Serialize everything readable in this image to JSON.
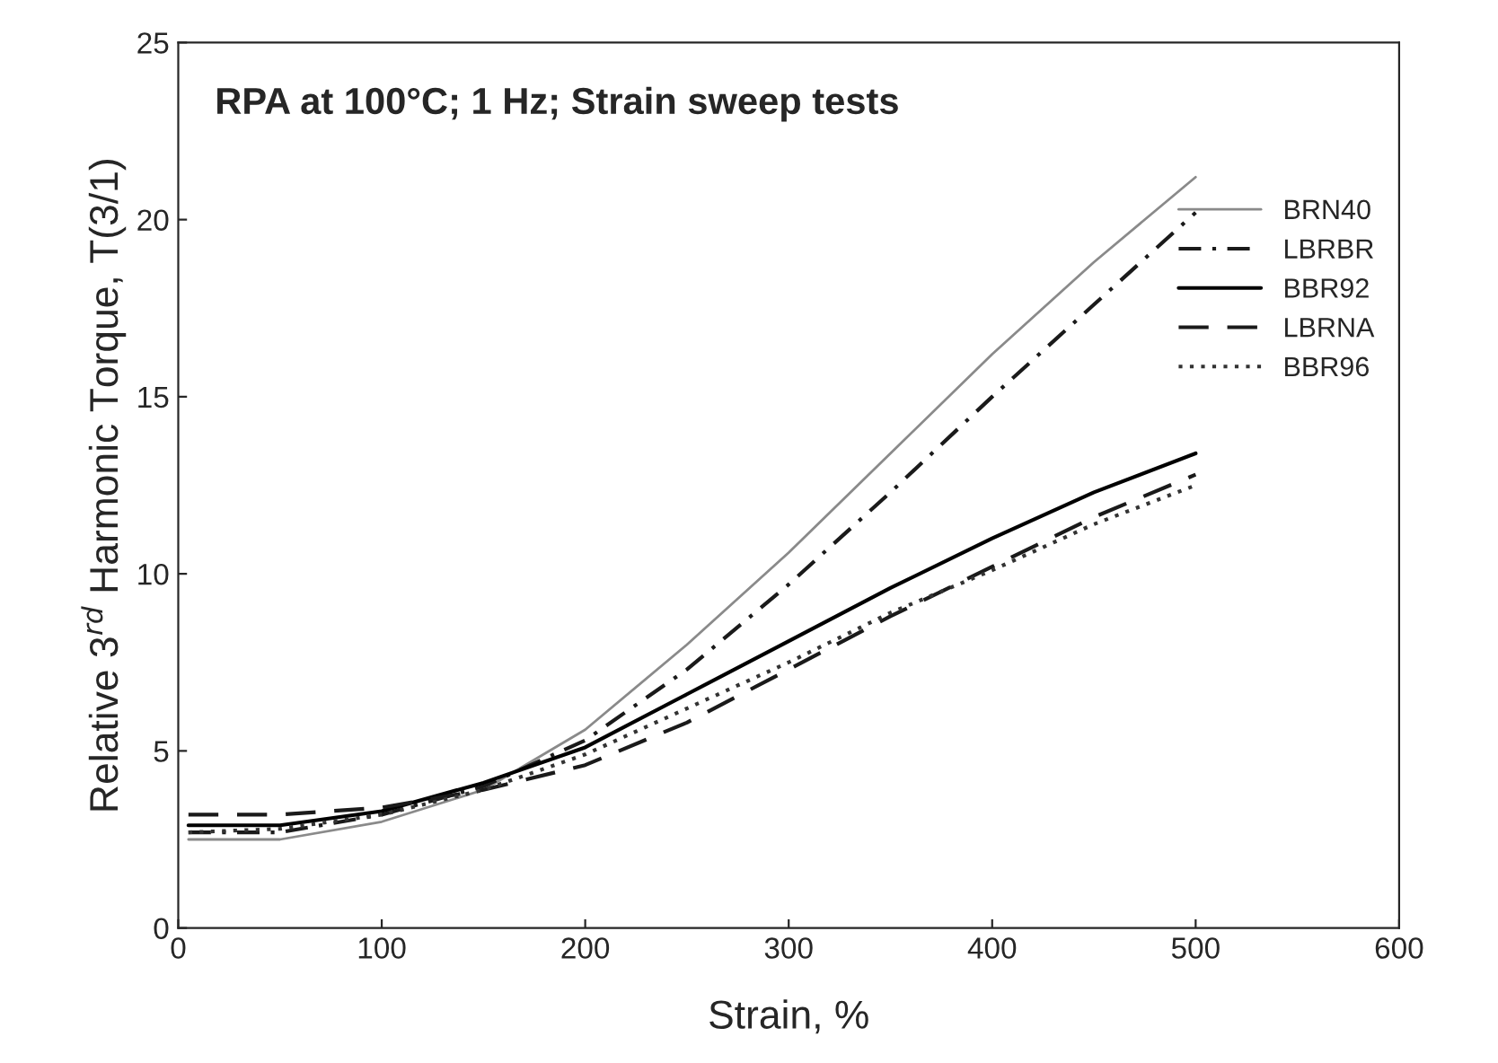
{
  "chart_data": {
    "type": "line",
    "title": "RPA at 100°C; 1 Hz; Strain sweep tests",
    "xlabel": "Strain, %",
    "ylabel": "Relative 3$^{rd}$ Harmonic Torque, T(3/1)",
    "x": [
      5,
      50,
      100,
      150,
      200,
      250,
      300,
      350,
      400,
      450,
      500
    ],
    "series": [
      {
        "name": "BRN40",
        "color": "#8a8a8a",
        "line_style": "solid",
        "values": [
          2.5,
          2.5,
          3.0,
          3.9,
          5.6,
          8.0,
          10.6,
          13.4,
          16.2,
          18.8,
          21.2
        ]
      },
      {
        "name": "LBRBR",
        "color": "#1a1a1a",
        "line_style": "dashdot",
        "values": [
          2.7,
          2.7,
          3.2,
          4.0,
          5.3,
          7.3,
          9.7,
          12.3,
          15.0,
          17.6,
          20.2
        ]
      },
      {
        "name": "BBR92",
        "color": "#000000",
        "line_style": "solid",
        "values": [
          2.9,
          2.9,
          3.3,
          4.1,
          5.1,
          6.6,
          8.1,
          9.6,
          11.0,
          12.3,
          13.4
        ]
      },
      {
        "name": "LBRNA",
        "color": "#1a1a1a",
        "line_style": "dashed",
        "values": [
          3.2,
          3.2,
          3.4,
          3.9,
          4.6,
          5.8,
          7.3,
          8.8,
          10.2,
          11.6,
          12.8
        ]
      },
      {
        "name": "BBR96",
        "color": "#333333",
        "line_style": "dotted",
        "values": [
          2.7,
          2.8,
          3.2,
          3.9,
          4.9,
          6.2,
          7.5,
          8.9,
          10.1,
          11.4,
          12.5
        ]
      }
    ],
    "xlim": [
      0,
      600
    ],
    "xticks": [
      0,
      100,
      200,
      300,
      400,
      500,
      600
    ],
    "ylim": [
      0,
      25
    ],
    "yticks": [
      0,
      5,
      10,
      15,
      20,
      25
    ],
    "grid": false,
    "legend": "right"
  }
}
